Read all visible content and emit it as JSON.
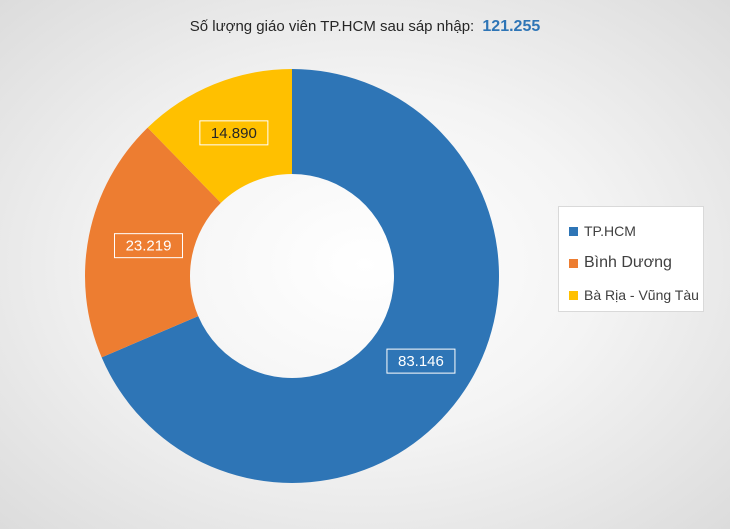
{
  "header": {
    "title_prefix": "Số lượng giáo viên TP.HCM sau sáp nhập:",
    "title_total": "121.255"
  },
  "chart_data": {
    "type": "pie",
    "donut": true,
    "title": "Số lượng giáo viên TP.HCM sau sáp nhập: 121.255",
    "categories": [
      "TP.HCM",
      "Bình Dương",
      "Bà Rịa - Vũng Tàu"
    ],
    "values": [
      83146,
      23219,
      14890
    ],
    "value_labels": [
      "83.146",
      "23.219",
      "14.890"
    ],
    "colors": [
      "#2e75b6",
      "#ed7d31",
      "#ffc000"
    ],
    "legend_position": "right"
  },
  "legend": {
    "items": [
      {
        "label": "TP.HCM",
        "color": "#2e75b6"
      },
      {
        "label": "Bình Dương",
        "color": "#ed7d31"
      },
      {
        "label": "Bà Rịa - Vũng Tàu",
        "color": "#ffc000"
      }
    ]
  }
}
